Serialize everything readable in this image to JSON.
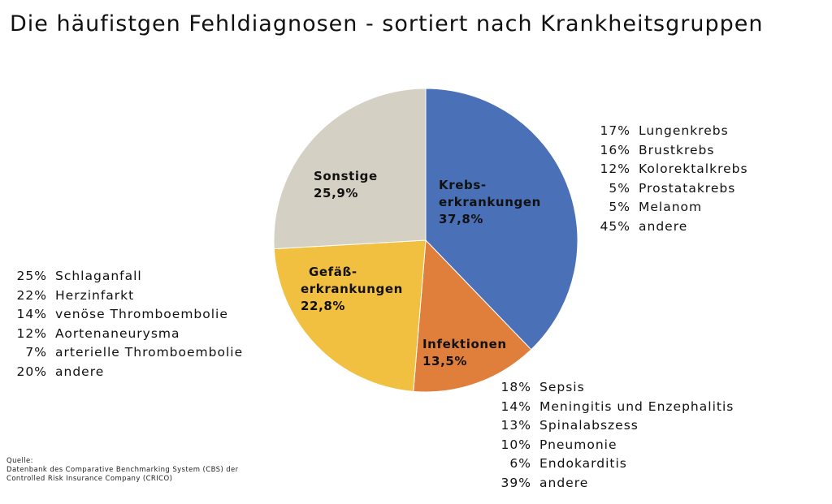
{
  "title": "Die häufistgen Fehldiagnosen - sortiert nach Krankheitsgruppen",
  "chart_data": {
    "type": "pie",
    "title": "Die häufistgen Fehldiagnosen - sortiert nach Krankheitsgruppen",
    "start_angle_deg": 0,
    "direction": "clockwise",
    "slices": [
      {
        "name": "Krebs- erkrankungen",
        "label_lines": [
          "Krebs-",
          "erkrankungen"
        ],
        "value": 37.8,
        "value_label": "37,8%",
        "color": "#4a70b8"
      },
      {
        "name": "Infektionen",
        "label_lines": [
          "Infektionen"
        ],
        "value": 13.5,
        "value_label": "13,5%",
        "color": "#e07e3c"
      },
      {
        "name": "Gefäß- erkrankungen",
        "label_lines": [
          "Gefäß-",
          "erkrankungen"
        ],
        "value": 22.8,
        "value_label": "22,8%",
        "color": "#f2c040"
      },
      {
        "name": "Sonstige",
        "label_lines": [
          "Sonstige"
        ],
        "value": 25.9,
        "value_label": "25,9%",
        "color": "#d5d0c4"
      }
    ]
  },
  "breakdowns": {
    "krebs": [
      {
        "pct": "17%",
        "label": "Lungenkrebs"
      },
      {
        "pct": "16%",
        "label": "Brustkrebs"
      },
      {
        "pct": "12%",
        "label": "Kolorektalkrebs"
      },
      {
        "pct": "5%",
        "label": "Prostatakrebs"
      },
      {
        "pct": "5%",
        "label": "Melanom"
      },
      {
        "pct": "45%",
        "label": "andere"
      }
    ],
    "gefaess": [
      {
        "pct": "25%",
        "label": "Schlaganfall"
      },
      {
        "pct": "22%",
        "label": "Herzinfarkt"
      },
      {
        "pct": "14%",
        "label": "venöse Thromboembolie"
      },
      {
        "pct": "12%",
        "label": "Aortenaneurysma"
      },
      {
        "pct": "7%",
        "label": "arterielle Thromboembolie"
      },
      {
        "pct": "20%",
        "label": "andere"
      }
    ],
    "infektionen": [
      {
        "pct": "18%",
        "label": "Sepsis"
      },
      {
        "pct": "14%",
        "label": "Meningitis und Enzephalitis"
      },
      {
        "pct": "13%",
        "label": "Spinalabszess"
      },
      {
        "pct": "10%",
        "label": "Pneumonie"
      },
      {
        "pct": "6%",
        "label": "Endokarditis"
      },
      {
        "pct": "39%",
        "label": "andere"
      }
    ]
  },
  "source": {
    "heading": "Quelle:",
    "lines": [
      "Datenbank des Comparative Benchmarking System (CBS) der",
      "Controlled Risk Insurance Company (CRICO)"
    ]
  }
}
